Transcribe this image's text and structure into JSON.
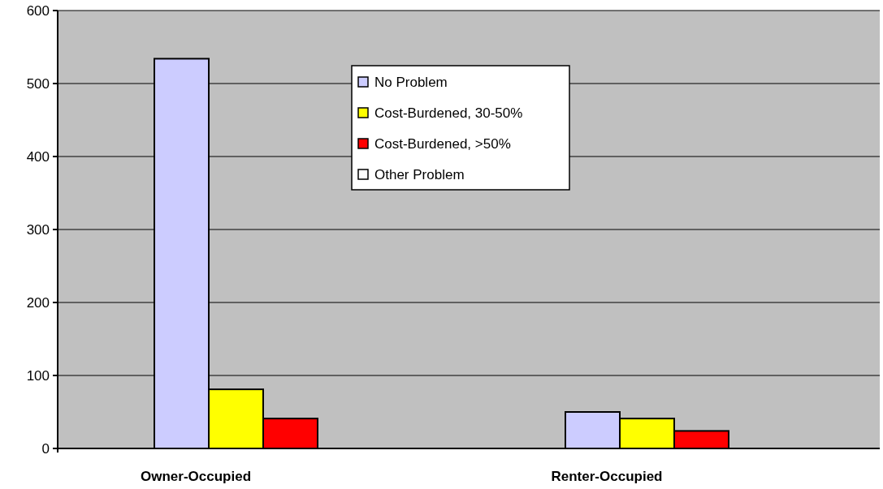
{
  "chart_data": {
    "type": "bar",
    "categories": [
      "Owner-Occupied",
      "Renter-Occupied"
    ],
    "series": [
      {
        "name": "No Problem",
        "color": "#ccccff",
        "values": [
          534,
          50
        ]
      },
      {
        "name": "Cost-Burdened, 30-50%",
        "color": "#ffff00",
        "values": [
          81,
          41
        ]
      },
      {
        "name": "Cost-Burdened, >50%",
        "color": "#ff0000",
        "values": [
          41,
          24
        ]
      },
      {
        "name": "Other Problem",
        "color": "#ffffff",
        "values": [
          0,
          0
        ]
      }
    ],
    "ylim": [
      0,
      600
    ],
    "yticks": [
      0,
      100,
      200,
      300,
      400,
      500,
      600
    ],
    "grid": "y",
    "legend": "top"
  }
}
